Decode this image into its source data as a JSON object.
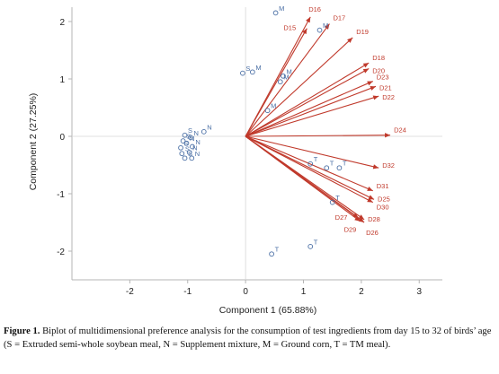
{
  "chart_data": {
    "type": "scatter",
    "xlabel": "Component 1 (65.88%)",
    "ylabel": "Component 2 (27.25%)",
    "xlim": [
      -3,
      3.4
    ],
    "ylim": [
      -2.5,
      2.25
    ],
    "x_ticks": [
      -2,
      -1,
      0,
      1,
      2,
      3
    ],
    "y_ticks": [
      -2,
      -1,
      0,
      1,
      2
    ],
    "grid": false,
    "colors": {
      "vectors": "#c0392b",
      "points": "#4a6fa5",
      "axes": "#b5b5b5"
    },
    "vectors": [
      {
        "name": "D16",
        "x": 1.12,
        "y": 2.08
      },
      {
        "name": "D15",
        "x": 1.06,
        "y": 1.88
      },
      {
        "name": "D17",
        "x": 1.45,
        "y": 1.96
      },
      {
        "name": "D19",
        "x": 1.85,
        "y": 1.72
      },
      {
        "name": "D18",
        "x": 2.13,
        "y": 1.28
      },
      {
        "name": "D20",
        "x": 2.13,
        "y": 1.18
      },
      {
        "name": "D23",
        "x": 2.2,
        "y": 0.96
      },
      {
        "name": "D21",
        "x": 2.25,
        "y": 0.87
      },
      {
        "name": "D22",
        "x": 2.3,
        "y": 0.7
      },
      {
        "name": "D24",
        "x": 2.5,
        "y": 0.02
      },
      {
        "name": "D32",
        "x": 2.3,
        "y": -0.55
      },
      {
        "name": "D31",
        "x": 2.2,
        "y": -0.95
      },
      {
        "name": "D25",
        "x": 2.22,
        "y": -1.1
      },
      {
        "name": "D30",
        "x": 2.2,
        "y": -1.15
      },
      {
        "name": "D28",
        "x": 2.05,
        "y": -1.45
      },
      {
        "name": "D27",
        "x": 1.95,
        "y": -1.42
      },
      {
        "name": "D29",
        "x": 1.98,
        "y": -1.48
      },
      {
        "name": "D26",
        "x": 2.05,
        "y": -1.5
      }
    ],
    "points": [
      {
        "label": "M",
        "x": 0.52,
        "y": 2.15
      },
      {
        "label": "M",
        "x": 1.28,
        "y": 1.85
      },
      {
        "label": "M",
        "x": 0.65,
        "y": 1.05
      },
      {
        "label": "M",
        "x": 0.6,
        "y": 0.95
      },
      {
        "label": "M",
        "x": 0.38,
        "y": 0.45
      },
      {
        "label": "S",
        "x": -0.05,
        "y": 1.1
      },
      {
        "label": "M",
        "x": 0.12,
        "y": 1.12
      },
      {
        "label": "N",
        "x": -0.72,
        "y": 0.08
      },
      {
        "label": "N",
        "x": -0.95,
        "y": -0.02
      },
      {
        "label": "N",
        "x": -1.02,
        "y": -0.12
      },
      {
        "label": "N",
        "x": -0.92,
        "y": -0.18
      },
      {
        "label": "N",
        "x": -0.97,
        "y": -0.28
      },
      {
        "label": "N",
        "x": -0.93,
        "y": -0.38
      },
      {
        "label": "S",
        "x": -1.05,
        "y": 0.02
      },
      {
        "label": "S",
        "x": -1.08,
        "y": -0.08
      },
      {
        "label": "S",
        "x": -1.12,
        "y": -0.2
      },
      {
        "label": "S",
        "x": -1.1,
        "y": -0.3
      },
      {
        "label": "S",
        "x": -1.05,
        "y": -0.38
      },
      {
        "label": "T",
        "x": 1.12,
        "y": -0.48
      },
      {
        "label": "T",
        "x": 1.4,
        "y": -0.55
      },
      {
        "label": "T",
        "x": 1.62,
        "y": -0.55
      },
      {
        "label": "T",
        "x": 1.5,
        "y": -1.15
      },
      {
        "label": "T",
        "x": 0.45,
        "y": -2.05
      },
      {
        "label": "T",
        "x": 1.12,
        "y": -1.92
      }
    ]
  },
  "caption": {
    "prefix": "Figure 1.",
    "text": " Biplot of multidimensional preference analysis for the consumption of test ingredients from day 15 to 32 of birds’ age (S = Extruded semi-whole soybean meal, N = Supplement mixture, M = Ground corn, T = TM meal)."
  }
}
